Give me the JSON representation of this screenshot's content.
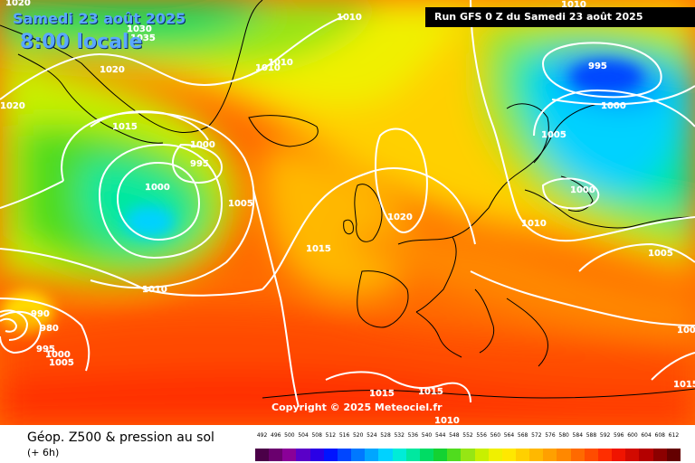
{
  "header": {
    "date": "Samedi 23 août 2025",
    "local_time": "8:00 locale",
    "run": "Run GFS 0 Z du Samedi 23 août 2025"
  },
  "copyright": "Copyright © 2025 Meteociel.fr",
  "footer": {
    "title": "Géop. Z500 & pression au sol",
    "subtitle": "(+ 6h)"
  },
  "legend": {
    "levels": [
      "492",
      "496",
      "500",
      "504",
      "508",
      "512",
      "516",
      "520",
      "524",
      "528",
      "532",
      "536",
      "540",
      "544",
      "548",
      "552",
      "556",
      "560",
      "564",
      "568",
      "572",
      "576",
      "580",
      "584",
      "588",
      "592",
      "596",
      "600",
      "604",
      "608",
      "612"
    ],
    "colors": [
      "#4b0048",
      "#6a006e",
      "#8a0098",
      "#5a00c8",
      "#2a00e6",
      "#0014ff",
      "#0046ff",
      "#0078ff",
      "#00a6ff",
      "#00d2ff",
      "#00ecd8",
      "#00e8a0",
      "#00dc64",
      "#14d232",
      "#50dc1e",
      "#96e614",
      "#c8f000",
      "#f0f000",
      "#ffe800",
      "#ffd000",
      "#ffb800",
      "#ffa000",
      "#ff8800",
      "#ff6a00",
      "#ff4c00",
      "#ff2e00",
      "#f01400",
      "#d20a00",
      "#b40000",
      "#8c0000",
      "#640000"
    ]
  },
  "isobar_labels": [
    {
      "text": "1010",
      "name": "isobar-label-1010-north"
    },
    {
      "text": "1020",
      "name": "isobar-label-1020-nw"
    },
    {
      "text": "1030",
      "name": "isobar-label-1030"
    },
    {
      "text": "1035",
      "name": "isobar-label-1035"
    },
    {
      "text": "1020",
      "name": "isobar-label-1020-west"
    },
    {
      "text": "1020",
      "name": "isobar-label-1020-greenland"
    },
    {
      "text": "1010",
      "name": "isobar-label-1010-greenland-a"
    },
    {
      "text": "1010",
      "name": "isobar-label-1010-greenland-b"
    },
    {
      "text": "1015",
      "name": "isobar-label-1015-greenland"
    },
    {
      "text": "1000",
      "name": "isobar-label-1000-lowcenter"
    },
    {
      "text": "995",
      "name": "isobar-label-995-lowcenter"
    },
    {
      "text": "1000",
      "name": "isobar-label-1000-atlantic"
    },
    {
      "text": "1005",
      "name": "isobar-label-1005-atlantic"
    },
    {
      "text": "1015",
      "name": "isobar-label-1015-atlantic"
    },
    {
      "text": "1010",
      "name": "isobar-label-1010-atlantic"
    },
    {
      "text": "990",
      "name": "isobar-label-990-hurricane"
    },
    {
      "text": "980",
      "name": "isobar-label-980-hurricane"
    },
    {
      "text": "995",
      "name": "isobar-label-995-hurricane"
    },
    {
      "text": "1000",
      "name": "isobar-label-1000-hurricane"
    },
    {
      "text": "1005",
      "name": "isobar-label-1005-hurricane"
    },
    {
      "text": "1020",
      "name": "isobar-label-1020-uk"
    },
    {
      "text": "995",
      "name": "isobar-label-995-scandinavia"
    },
    {
      "text": "1000",
      "name": "isobar-label-1000-scandinavia"
    },
    {
      "text": "1005",
      "name": "isobar-label-1005-scandinavia"
    },
    {
      "text": "1000",
      "name": "isobar-label-1000-baltic"
    },
    {
      "text": "1010",
      "name": "isobar-label-1010-europe"
    },
    {
      "text": "1010",
      "name": "isobar-label-1010-northeast"
    },
    {
      "text": "1005",
      "name": "isobar-label-1005-east"
    },
    {
      "text": "1005",
      "name": "isobar-label-1005-far-east"
    },
    {
      "text": "1015",
      "name": "isobar-label-1015-africa-a"
    },
    {
      "text": "1015",
      "name": "isobar-label-1015-africa-b"
    },
    {
      "text": "1010",
      "name": "isobar-label-1010-africa"
    },
    {
      "text": "1015",
      "name": "isobar-label-1015-east-edge"
    }
  ]
}
